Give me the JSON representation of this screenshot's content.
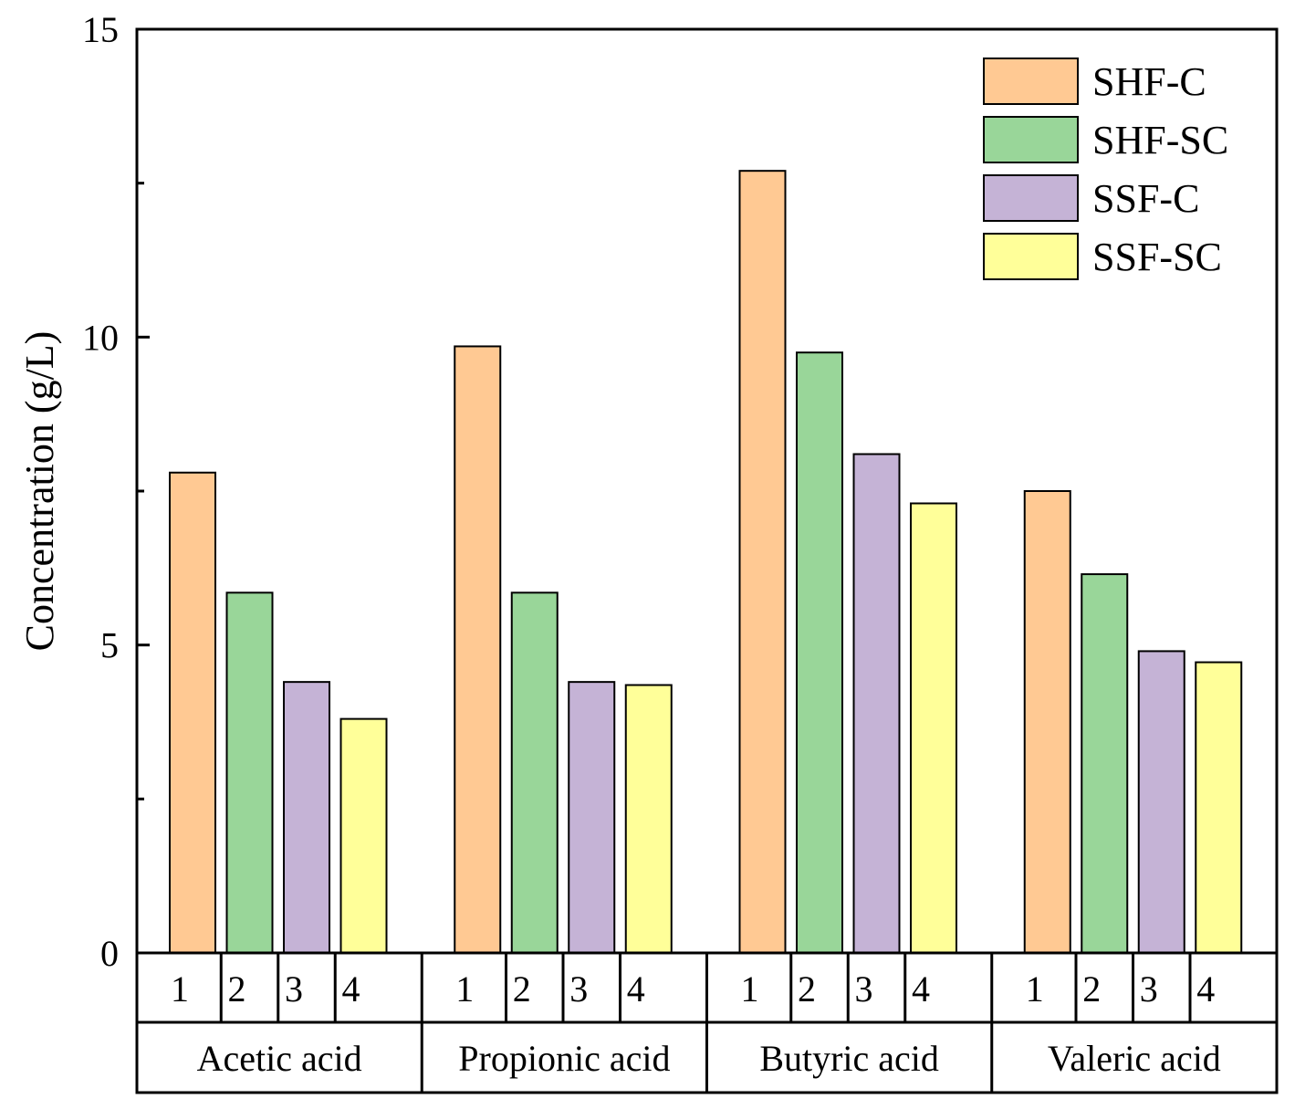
{
  "chart_data": {
    "type": "bar",
    "title": "",
    "xlabel": "",
    "ylabel": "Concentration (g/L)",
    "ylim": [
      0,
      15
    ],
    "yticks_major": [
      0,
      5,
      10,
      15
    ],
    "yticks_minor": [
      2.5,
      7.5,
      12.5
    ],
    "grid": false,
    "legend_position": "top-right",
    "groups": [
      "Acetic acid",
      "Propionic acid",
      "Butyric acid",
      "Valeric acid"
    ],
    "subcategories": [
      "1",
      "2",
      "3",
      "4"
    ],
    "series": [
      {
        "name": "SHF-C",
        "color": "#FFC993",
        "values": [
          7.8,
          9.85,
          12.7,
          7.5
        ]
      },
      {
        "name": "SHF-SC",
        "color": "#99D699",
        "values": [
          5.85,
          5.85,
          9.75,
          6.15
        ]
      },
      {
        "name": "SSF-C",
        "color": "#C5B3D6",
        "values": [
          4.4,
          4.4,
          8.1,
          4.9
        ]
      },
      {
        "name": "SSF-SC",
        "color": "#FFFF99",
        "values": [
          3.8,
          4.35,
          7.3,
          4.72
        ]
      }
    ]
  }
}
